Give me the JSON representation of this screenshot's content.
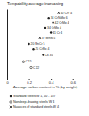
{
  "chart_data": {
    "type": "scatter",
    "y_label": "Tempability average increasing",
    "x_label": "Average carbon content in % (by weight)",
    "xlim": [
      0,
      0.7
    ],
    "xticks": [
      0,
      0.2,
      0.4,
      0.6
    ],
    "ylim": [
      0,
      10
    ],
    "tick_labels": "x",
    "color": "#222222",
    "series": [
      {
        "name": "Standard steels W 1, 50 - 107",
        "marker": "circle",
        "x": [
          0.38,
          0.42,
          0.35,
          0.4,
          0.2,
          0.24,
          0.33
        ],
        "values": [
          8.7,
          8.0,
          7.3,
          6.6,
          5.0,
          4.2,
          3.4
        ],
        "labels": [
          "34 CrNiMo 6",
          "42 CrMo 4",
          "34 CrMo 4",
          "41 Cr 4",
          "20 MnCr 5",
          "25 CrMo 4",
          "Ck 35"
        ]
      },
      {
        "name": "Nondeep-drawing steels W 4",
        "marker": "circle-open",
        "x": [
          0.15,
          0.22
        ],
        "values": [
          2.4,
          1.6
        ],
        "labels": [
          "C 15",
          "C 22"
        ]
      },
      {
        "name": "Nuances of standard steels W 4",
        "marker": "cross",
        "x": [
          0.47,
          0.3
        ],
        "values": [
          9.4,
          5.8
        ],
        "labels": [
          "50 CrV 4",
          "37 MnSi 5"
        ]
      }
    ]
  }
}
